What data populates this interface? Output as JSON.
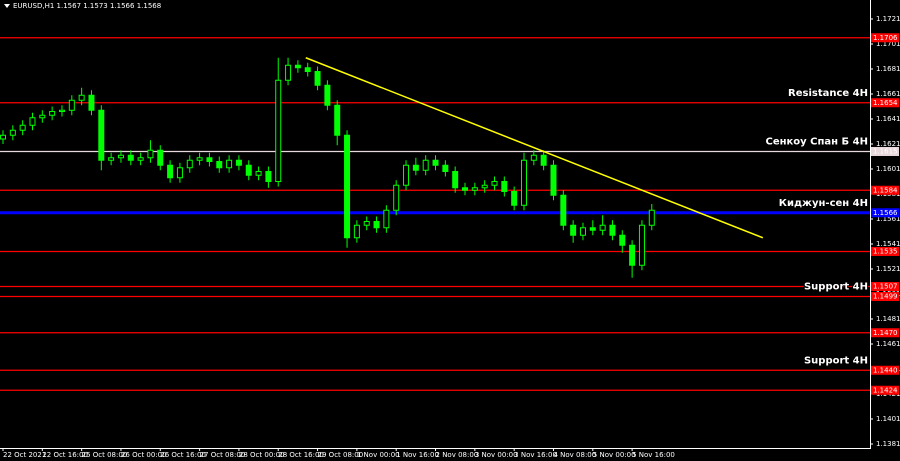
{
  "chart_data": {
    "type": "candlestick",
    "title": "EURUSD,H1  1.1567 1.1573 1.1566 1.1568",
    "categories": [
      "22 Oct 2021",
      null,
      null,
      null,
      "22 Oct 16:00",
      null,
      null,
      null,
      "25 Oct 08:00",
      null,
      null,
      null,
      "26 Oct 00:00",
      null,
      null,
      null,
      "26 Oct 16:00",
      null,
      null,
      null,
      "27 Oct 08:00",
      null,
      null,
      null,
      "28 Oct 00:00",
      null,
      null,
      null,
      "28 Oct 16:00",
      null,
      null,
      null,
      "29 Oct 08:00",
      null,
      null,
      null,
      "1 Nov 00:00",
      null,
      null,
      null,
      "1 Nov 16:00",
      null,
      null,
      null,
      "2 Nov 08:00",
      null,
      null,
      null,
      "3 Nov 00:00",
      null,
      null,
      null,
      "3 Nov 16:00",
      null,
      null,
      null,
      "4 Nov 08:00",
      null,
      null,
      null,
      "5 Nov 00:00",
      null,
      null,
      null,
      "5 Nov 16:00",
      null,
      null
    ],
    "open": [
      1.1625,
      1.1628,
      1.1632,
      1.1636,
      1.1642,
      1.1644,
      1.1647,
      1.1648,
      1.1656,
      1.166,
      1.1648,
      1.1608,
      1.161,
      1.1612,
      1.1608,
      1.161,
      1.1616,
      1.1604,
      1.1594,
      1.1602,
      1.1608,
      1.161,
      1.1607,
      1.1602,
      1.1608,
      1.1604,
      1.1596,
      1.1599,
      1.1591,
      1.1672,
      1.1684,
      1.1682,
      1.1679,
      1.1668,
      1.1652,
      1.1628,
      1.1546,
      1.1556,
      1.1559,
      1.1554,
      1.1568,
      1.1588,
      1.1604,
      1.16,
      1.1608,
      1.1604,
      1.1599,
      1.1586,
      1.1584,
      1.1586,
      1.1588,
      1.1591,
      1.1583,
      1.1572,
      1.1608,
      1.1612,
      1.1604,
      1.158,
      1.1556,
      1.1548,
      1.1554,
      1.1552,
      1.1556,
      1.1548,
      1.154,
      1.1524,
      1.1556
    ],
    "high": [
      1.1632,
      1.1636,
      1.164,
      1.1646,
      1.1648,
      1.1651,
      1.1652,
      1.166,
      1.1666,
      1.1664,
      1.1652,
      1.1614,
      1.1616,
      1.1616,
      1.1614,
      1.1624,
      1.162,
      1.1608,
      1.1606,
      1.1612,
      1.1614,
      1.1614,
      1.1611,
      1.1612,
      1.1612,
      1.1608,
      1.1603,
      1.1603,
      1.169,
      1.169,
      1.1688,
      1.1686,
      1.1683,
      1.1672,
      1.1656,
      1.1632,
      1.156,
      1.1563,
      1.1563,
      1.1572,
      1.1592,
      1.1608,
      1.161,
      1.1612,
      1.1612,
      1.1608,
      1.1603,
      1.159,
      1.159,
      1.1592,
      1.1595,
      1.1595,
      1.1587,
      1.1614,
      1.1616,
      1.1616,
      1.1608,
      1.1584,
      1.156,
      1.1558,
      1.156,
      1.1564,
      1.156,
      1.1552,
      1.1544,
      1.156,
      1.1573
    ],
    "low": [
      1.1621,
      1.1624,
      1.1628,
      1.1632,
      1.1638,
      1.164,
      1.1643,
      1.1644,
      1.1652,
      1.1644,
      1.16,
      1.1604,
      1.1606,
      1.1604,
      1.1604,
      1.1606,
      1.16,
      1.159,
      1.159,
      1.1598,
      1.1604,
      1.1603,
      1.1598,
      1.1598,
      1.16,
      1.1592,
      1.1592,
      1.1586,
      1.1587,
      1.1668,
      1.1678,
      1.1675,
      1.1664,
      1.1648,
      1.162,
      1.1538,
      1.1542,
      1.1552,
      1.155,
      1.155,
      1.1564,
      1.1584,
      1.1596,
      1.1596,
      1.16,
      1.1595,
      1.1582,
      1.158,
      1.158,
      1.1582,
      1.1584,
      1.1579,
      1.1568,
      1.1568,
      1.1604,
      1.16,
      1.1576,
      1.1552,
      1.1542,
      1.1544,
      1.1548,
      1.1548,
      1.1544,
      1.1534,
      1.1514,
      1.152,
      1.1552
    ],
    "close": [
      1.1628,
      1.1632,
      1.1636,
      1.1642,
      1.1644,
      1.1647,
      1.1648,
      1.1656,
      1.166,
      1.1648,
      1.1608,
      1.161,
      1.1612,
      1.1608,
      1.161,
      1.1616,
      1.1604,
      1.1594,
      1.1602,
      1.1608,
      1.161,
      1.1607,
      1.1602,
      1.1608,
      1.1604,
      1.1596,
      1.1599,
      1.1591,
      1.1672,
      1.1684,
      1.1682,
      1.1679,
      1.1668,
      1.1652,
      1.1628,
      1.1546,
      1.1556,
      1.1559,
      1.1554,
      1.1568,
      1.1588,
      1.1604,
      1.16,
      1.1608,
      1.1604,
      1.1599,
      1.1586,
      1.1584,
      1.1586,
      1.1588,
      1.1591,
      1.1583,
      1.1572,
      1.1608,
      1.1612,
      1.1604,
      1.158,
      1.1556,
      1.1548,
      1.1554,
      1.1552,
      1.1556,
      1.1548,
      1.154,
      1.1524,
      1.1556,
      1.1568
    ],
    "color": "#00ff00",
    "ylim": [
      1.13778,
      1.17362
    ],
    "yticks": [
      1.1721,
      1.1701,
      1.1681,
      1.1661,
      1.1641,
      1.1621,
      1.1601,
      1.1581,
      1.1561,
      1.1541,
      1.1521,
      1.1501,
      1.1481,
      1.1461,
      1.1441,
      1.1421,
      1.1401,
      1.1381
    ],
    "levels": [
      {
        "value": 1.1706,
        "color": "#ff0000"
      },
      {
        "value": 1.1654,
        "color": "#ff0000",
        "name": "Resistance 4H"
      },
      {
        "value": 1.1615,
        "color": "#e8d8dc",
        "name": "Сенкоу Спан Б 4Н"
      },
      {
        "value": 1.1584,
        "color": "#ff0000"
      },
      {
        "value": 1.1566,
        "color": "#0000ff",
        "name": "Киджун-сен 4Н"
      },
      {
        "value": 1.1535,
        "color": "#ff0000"
      },
      {
        "value": 1.1507,
        "color": "#ff0000"
      },
      {
        "value": 1.1499,
        "color": "#ff0000",
        "name": "Support 4H"
      },
      {
        "value": {
          "value": 1.147,
          "label": "1.1470"
        },
        "color": "#ff0000"
      },
      {
        "value": {
          "value": 1.144,
          "label": "1.1440"
        },
        "color": "#ff0000",
        "name": "Support 4H"
      },
      {
        "value": 1.1424,
        "color": "#ff0000"
      }
    ],
    "trendline": {
      "x": [
        30.8,
        77.3
      ],
      "values": [
        1.169,
        1.1546
      ],
      "color": "#ffff00"
    }
  }
}
